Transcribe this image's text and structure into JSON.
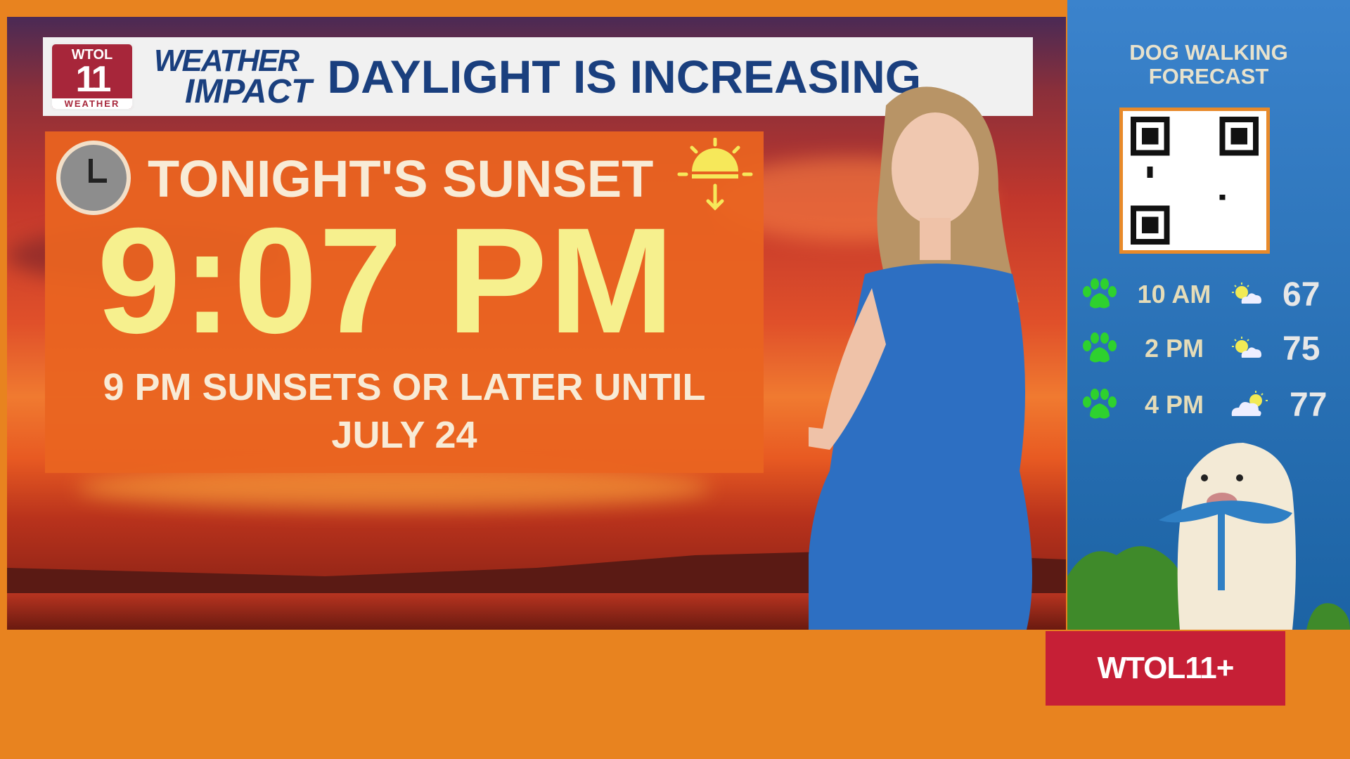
{
  "header": {
    "station_logo": "WTOL 11 WEATHER",
    "show_logo": "WEATHER IMPACT",
    "headline": "DAYLIGHT IS INCREASING"
  },
  "sunset": {
    "title": "TONIGHT'S SUNSET",
    "time": "9:07 PM",
    "note_line1": "9 PM SUNSETS OR LATER UNTIL",
    "note_line2": "JULY 24"
  },
  "dog_forecast": {
    "title_line1": "DOG WALKING",
    "title_line2": "FORECAST",
    "rows": [
      {
        "time": "10 AM",
        "icon": "partly-sunny-icon",
        "temp": "67"
      },
      {
        "time": "2 PM",
        "icon": "partly-sunny-icon",
        "temp": "75"
      },
      {
        "time": "4 PM",
        "icon": "mostly-cloudy-icon",
        "temp": "77"
      }
    ]
  },
  "brand": "WTOL11+",
  "colors": {
    "accent_orange": "#e8831f",
    "headline_blue": "#1a3f7e",
    "time_yellow": "#f6f08e",
    "brand_red": "#c61f36",
    "paw_green": "#2ed12e"
  }
}
